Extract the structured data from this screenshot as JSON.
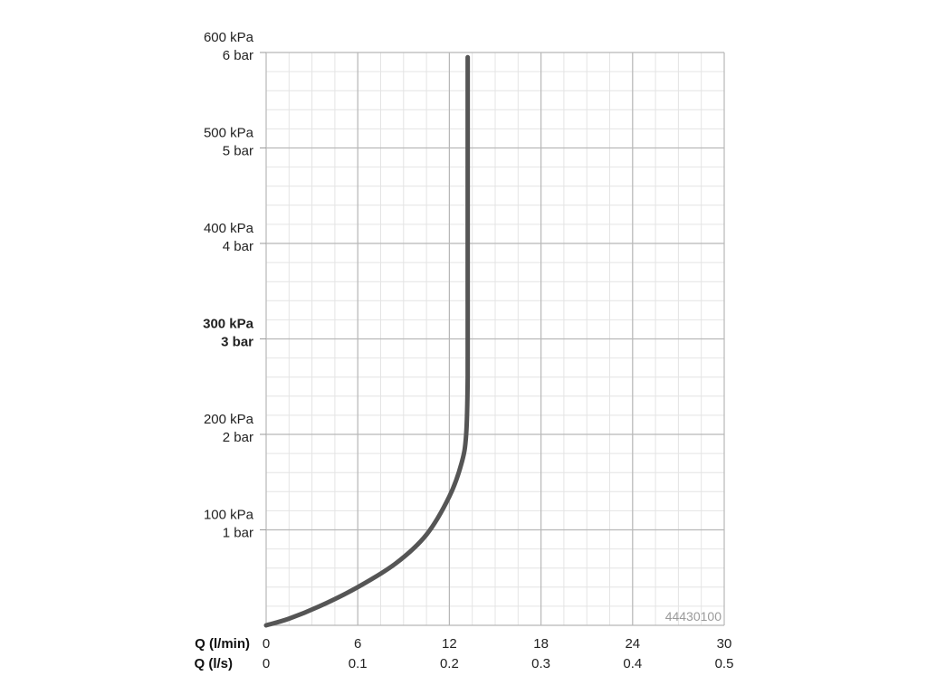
{
  "chart_data": {
    "type": "line",
    "xlabel_primary": "Q (l/min)",
    "xlabel_secondary": "Q (l/s)",
    "xlim": [
      0,
      30
    ],
    "ylim": [
      0,
      600
    ],
    "x_ticks": [
      0,
      6,
      12,
      18,
      24,
      30
    ],
    "x_tick_labels_primary": [
      "0",
      "6",
      "12",
      "18",
      "24",
      "30"
    ],
    "x_tick_labels_secondary": [
      "0",
      "0.1",
      "0.2",
      "0.3",
      "0.4",
      "0.5"
    ],
    "y_ticks": [
      {
        "value": 100,
        "kpa": "100 kPa",
        "bar": "1 bar",
        "bold": false
      },
      {
        "value": 200,
        "kpa": "200 kPa",
        "bar": "2 bar",
        "bold": false
      },
      {
        "value": 300,
        "kpa": "300 kPa",
        "bar": "3 bar",
        "bold": true
      },
      {
        "value": 400,
        "kpa": "400 kPa",
        "bar": "4 bar",
        "bold": false
      },
      {
        "value": 500,
        "kpa": "500 kPa",
        "bar": "5 bar",
        "bold": false
      },
      {
        "value": 600,
        "kpa": "600 kPa",
        "bar": "6 bar",
        "bold": false
      }
    ],
    "grid": true,
    "identifier": "44430100",
    "series": [
      {
        "color": "#555555",
        "x": [
          0,
          1.5,
          3.5,
          6,
          8.5,
          10.5,
          12,
          12.8,
          13.1,
          13.2,
          13.2,
          13.2,
          13.2
        ],
        "y": [
          0,
          7,
          20,
          40,
          65,
          95,
          135,
          170,
          200,
          260,
          350,
          450,
          595
        ]
      }
    ]
  }
}
